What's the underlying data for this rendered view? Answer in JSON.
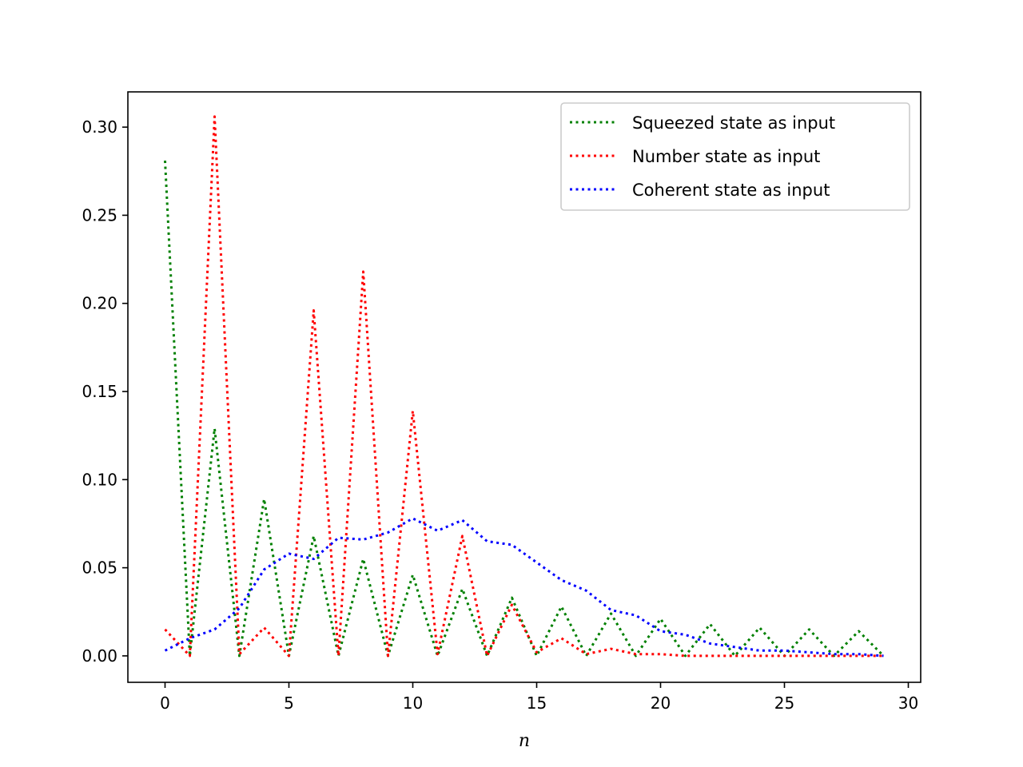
{
  "chart_data": {
    "type": "line",
    "title": "",
    "xlabel": "n",
    "ylabel": "",
    "xlim": [
      -1.5,
      30.5
    ],
    "ylim": [
      -0.015,
      0.32
    ],
    "xticks": [
      0,
      5,
      10,
      15,
      20,
      25,
      30
    ],
    "yticks": [
      0.0,
      0.05,
      0.1,
      0.15,
      0.2,
      0.25,
      0.3
    ],
    "xtick_labels": [
      "0",
      "5",
      "10",
      "15",
      "20",
      "25",
      "30"
    ],
    "ytick_labels": [
      "0.00",
      "0.05",
      "0.10",
      "0.15",
      "0.20",
      "0.25",
      "0.30"
    ],
    "grid": false,
    "legend_position": "top-right",
    "x": [
      0,
      1,
      2,
      3,
      4,
      5,
      6,
      7,
      8,
      9,
      10,
      11,
      12,
      13,
      14,
      15,
      16,
      17,
      18,
      19,
      20,
      21,
      22,
      23,
      24,
      25,
      26,
      27,
      28,
      29
    ],
    "series": [
      {
        "name": "Squeezed state as input",
        "color": "#008000",
        "values": [
          0.281,
          0.0,
          0.129,
          0.0,
          0.089,
          0.0,
          0.068,
          0.0,
          0.055,
          0.0,
          0.046,
          0.0,
          0.038,
          0.0,
          0.033,
          0.0,
          0.028,
          0.0,
          0.024,
          0.0,
          0.021,
          0.0,
          0.018,
          0.0,
          0.016,
          0.0,
          0.015,
          0.0,
          0.014,
          0.0
        ]
      },
      {
        "name": "Number state as input",
        "color": "#ff0000",
        "values": [
          0.015,
          0.0,
          0.306,
          0.001,
          0.016,
          0.0,
          0.196,
          0.0,
          0.218,
          0.0,
          0.139,
          0.001,
          0.068,
          0.0,
          0.029,
          0.002,
          0.01,
          0.001,
          0.004,
          0.001,
          0.001,
          0.0,
          0.0,
          0.0,
          0.0,
          0.0,
          0.0,
          0.0,
          0.0,
          0.0
        ]
      },
      {
        "name": "Coherent state as input",
        "color": "#0000ff",
        "values": [
          0.003,
          0.01,
          0.015,
          0.027,
          0.049,
          0.058,
          0.055,
          0.067,
          0.066,
          0.07,
          0.078,
          0.071,
          0.077,
          0.065,
          0.063,
          0.053,
          0.043,
          0.037,
          0.026,
          0.023,
          0.014,
          0.012,
          0.007,
          0.005,
          0.003,
          0.003,
          0.002,
          0.001,
          0.001,
          0.0
        ]
      }
    ]
  }
}
